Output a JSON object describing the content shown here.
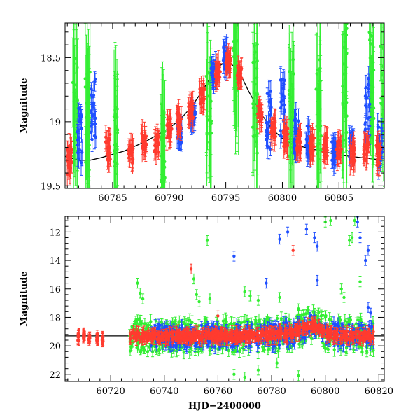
{
  "chart_data": [
    {
      "panel": "top",
      "type": "scatter",
      "title": "",
      "xlabel": "",
      "ylabel": "Magnitude",
      "xlim": [
        60780.8,
        60809.0
      ],
      "ylim": [
        19.52,
        18.23
      ],
      "y_inverted": true,
      "grid": false,
      "x_ticks": [
        60785,
        60790,
        60795,
        60800,
        60805
      ],
      "x_tick_labels": [
        "60785",
        "60790",
        "60795",
        "60800",
        "60805"
      ],
      "y_ticks": [
        18.5,
        19,
        19.5
      ],
      "y_tick_labels": [
        "18.5",
        "19",
        "19.5"
      ],
      "model_curve": {
        "color": "#000000",
        "points": [
          [
            60780.8,
            19.27
          ],
          [
            60782,
            19.3
          ],
          [
            60783,
            19.3
          ],
          [
            60784,
            19.28
          ],
          [
            60786,
            19.23
          ],
          [
            60788,
            19.15
          ],
          [
            60790,
            19.05
          ],
          [
            60791,
            18.98
          ],
          [
            60792,
            18.88
          ],
          [
            60793,
            18.75
          ],
          [
            60794,
            18.6
          ],
          [
            60794.8,
            18.54
          ],
          [
            60795.5,
            18.55
          ],
          [
            60796.3,
            18.63
          ],
          [
            60797,
            18.76
          ],
          [
            60798,
            18.92
          ],
          [
            60799,
            19.05
          ],
          [
            60800,
            19.13
          ],
          [
            60801,
            19.18
          ],
          [
            60803,
            19.22
          ],
          [
            60805,
            19.26
          ],
          [
            60807,
            19.28
          ],
          [
            60809,
            19.3
          ]
        ]
      },
      "series": [
        {
          "color": "#ff3b2f",
          "clusters": [
            {
              "x": 60781.2,
              "y": 19.3,
              "spread": 0.14
            },
            {
              "x": 60784.6,
              "y": 19.2,
              "spread": 0.13
            },
            {
              "x": 60786.6,
              "y": 19.25,
              "spread": 0.09
            },
            {
              "x": 60787.8,
              "y": 19.15,
              "spread": 0.1
            },
            {
              "x": 60788.9,
              "y": 19.18,
              "spread": 0.1
            },
            {
              "x": 60790.0,
              "y": 19.05,
              "spread": 0.1
            },
            {
              "x": 60790.9,
              "y": 18.99,
              "spread": 0.08
            },
            {
              "x": 60791.9,
              "y": 18.92,
              "spread": 0.08
            },
            {
              "x": 60792.9,
              "y": 18.8,
              "spread": 0.08
            },
            {
              "x": 60794.3,
              "y": 18.6,
              "spread": 0.07
            },
            {
              "x": 60795.2,
              "y": 18.55,
              "spread": 0.07
            },
            {
              "x": 60796.2,
              "y": 18.62,
              "spread": 0.07
            },
            {
              "x": 60798.0,
              "y": 18.92,
              "spread": 0.1
            },
            {
              "x": 60799.2,
              "y": 19.05,
              "spread": 0.1
            },
            {
              "x": 60800.3,
              "y": 19.12,
              "spread": 0.1
            },
            {
              "x": 60801.4,
              "y": 19.15,
              "spread": 0.1
            },
            {
              "x": 60802.6,
              "y": 19.18,
              "spread": 0.1
            },
            {
              "x": 60803.8,
              "y": 19.2,
              "spread": 0.1
            },
            {
              "x": 60805.0,
              "y": 19.22,
              "spread": 0.1
            },
            {
              "x": 60806.2,
              "y": 19.25,
              "spread": 0.1
            },
            {
              "x": 60807.4,
              "y": 19.23,
              "spread": 0.1
            },
            {
              "x": 60808.5,
              "y": 19.25,
              "spread": 0.12
            }
          ]
        },
        {
          "color": "#1f4fff",
          "clusters": [
            {
              "x": 60782.1,
              "y": 19.1,
              "spread": 0.3
            },
            {
              "x": 60783.3,
              "y": 18.9,
              "spread": 0.3
            },
            {
              "x": 60790.9,
              "y": 19.1,
              "spread": 0.1
            },
            {
              "x": 60792.1,
              "y": 18.95,
              "spread": 0.1
            },
            {
              "x": 60793.9,
              "y": 18.6,
              "spread": 0.12
            },
            {
              "x": 60795.0,
              "y": 18.5,
              "spread": 0.12
            },
            {
              "x": 60798.8,
              "y": 19.0,
              "spread": 0.3
            },
            {
              "x": 60800.0,
              "y": 18.9,
              "spread": 0.3
            },
            {
              "x": 60801.2,
              "y": 19.1,
              "spread": 0.2
            },
            {
              "x": 60802.3,
              "y": 19.15,
              "spread": 0.15
            },
            {
              "x": 60804.6,
              "y": 19.25,
              "spread": 0.12
            },
            {
              "x": 60806.1,
              "y": 19.2,
              "spread": 0.12
            },
            {
              "x": 60807.5,
              "y": 18.9,
              "spread": 0.3
            },
            {
              "x": 60808.6,
              "y": 19.2,
              "spread": 0.2
            }
          ]
        },
        {
          "color": "#33ee33",
          "clusters": [
            {
              "x": 60781.7,
              "y": 18.9,
              "spread": 0.6
            },
            {
              "x": 60782.8,
              "y": 18.9,
              "spread": 0.6
            },
            {
              "x": 60785.3,
              "y": 19.2,
              "spread": 0.4
            },
            {
              "x": 60789.4,
              "y": 19.3,
              "spread": 0.3
            },
            {
              "x": 60793.5,
              "y": 18.9,
              "spread": 0.4
            },
            {
              "x": 60795.9,
              "y": 18.6,
              "spread": 0.3
            },
            {
              "x": 60797.6,
              "y": 18.8,
              "spread": 0.6
            },
            {
              "x": 60800.8,
              "y": 18.9,
              "spread": 0.5
            },
            {
              "x": 60803.2,
              "y": 18.9,
              "spread": 0.5
            },
            {
              "x": 60805.5,
              "y": 18.7,
              "spread": 0.6
            },
            {
              "x": 60807.9,
              "y": 18.7,
              "spread": 0.5
            },
            {
              "x": 60808.9,
              "y": 18.8,
              "spread": 0.5
            }
          ]
        }
      ]
    },
    {
      "panel": "bottom",
      "type": "scatter",
      "title": "",
      "xlabel": "HJD−2400000",
      "ylabel": "Magnitude",
      "xlim": [
        60703,
        60822
      ],
      "ylim": [
        22.5,
        10.9
      ],
      "y_inverted": true,
      "grid": false,
      "x_ticks": [
        60720,
        60740,
        60760,
        60780,
        60800,
        60820
      ],
      "x_tick_labels": [
        "60720",
        "60740",
        "60760",
        "60780",
        "60800",
        "60820"
      ],
      "y_ticks": [
        12,
        14,
        16,
        18,
        20,
        22
      ],
      "y_tick_labels": [
        "12",
        "14",
        "16",
        "18",
        "20",
        "22"
      ],
      "model_curve": {
        "color": "#000000",
        "points": [
          [
            60703,
            19.3
          ],
          [
            60730,
            19.3
          ],
          [
            60760,
            19.3
          ],
          [
            60780,
            19.28
          ],
          [
            60788,
            19.1
          ],
          [
            60794,
            18.6
          ],
          [
            60796,
            18.55
          ],
          [
            60799,
            18.95
          ],
          [
            60803,
            19.2
          ],
          [
            60810,
            19.3
          ],
          [
            60822,
            19.3
          ]
        ]
      },
      "series": [
        {
          "color": "#ff3b2f",
          "clusters": [
            {
              "x": 60708,
              "y": 19.4,
              "spread": 0.3
            },
            {
              "x": 60710,
              "y": 19.3,
              "spread": 0.3
            },
            {
              "x": 60712,
              "y": 19.5,
              "spread": 0.3
            },
            {
              "x": 60715,
              "y": 19.4,
              "spread": 0.3
            },
            {
              "x": 60717,
              "y": 19.6,
              "spread": 0.3
            }
          ],
          "outliers": [
            [
              60750,
              14.6
            ],
            [
              60760,
              17.9
            ],
            [
              60788,
              13.3
            ]
          ],
          "band": {
            "from": 60727,
            "to": 60818,
            "density": 2.2,
            "spread": 0.35
          }
        },
        {
          "color": "#1f4fff",
          "outliers": [
            [
              60766,
              13.7
            ],
            [
              60778,
              15.6
            ],
            [
              60783,
              12.5
            ],
            [
              60786,
              12.0
            ],
            [
              60793,
              11.8
            ],
            [
              60796,
              12.4
            ],
            [
              60797,
              13.0
            ],
            [
              60797,
              15.4
            ],
            [
              60812,
              11.3
            ],
            [
              60813,
              12.4
            ],
            [
              60815,
              14.0
            ],
            [
              60816,
              13.3
            ],
            [
              60816,
              17.3
            ],
            [
              60817,
              17.7
            ]
          ],
          "band": {
            "from": 60735,
            "to": 60818,
            "density": 1.6,
            "spread": 0.9
          }
        },
        {
          "color": "#33ee33",
          "outliers": [
            [
              60730,
              15.6
            ],
            [
              60731,
              16.3
            ],
            [
              60732,
              16.7
            ],
            [
              60751,
              15.3
            ],
            [
              60752,
              16.4
            ],
            [
              60753,
              16.9
            ],
            [
              60756,
              12.6
            ],
            [
              60757,
              16.7
            ],
            [
              60770,
              16.2
            ],
            [
              60772,
              16.5
            ],
            [
              60775,
              16.8
            ],
            [
              60783,
              16.6
            ],
            [
              60790,
              17.4
            ],
            [
              60792,
              17.8
            ],
            [
              60800,
              11.3
            ],
            [
              60802,
              11.2
            ],
            [
              60806,
              16.0
            ],
            [
              60807,
              16.6
            ],
            [
              60809,
              12.6
            ],
            [
              60810,
              12.4
            ],
            [
              60811,
              11.2
            ],
            [
              60813,
              15.5
            ],
            [
              60766,
              22.0
            ],
            [
              60770,
              22.2
            ],
            [
              60775,
              21.7
            ],
            [
              60782,
              21.2
            ],
            [
              60790,
              22.1
            ]
          ],
          "band": {
            "from": 60727,
            "to": 60818,
            "density": 2.0,
            "spread": 1.3
          }
        }
      ]
    }
  ]
}
